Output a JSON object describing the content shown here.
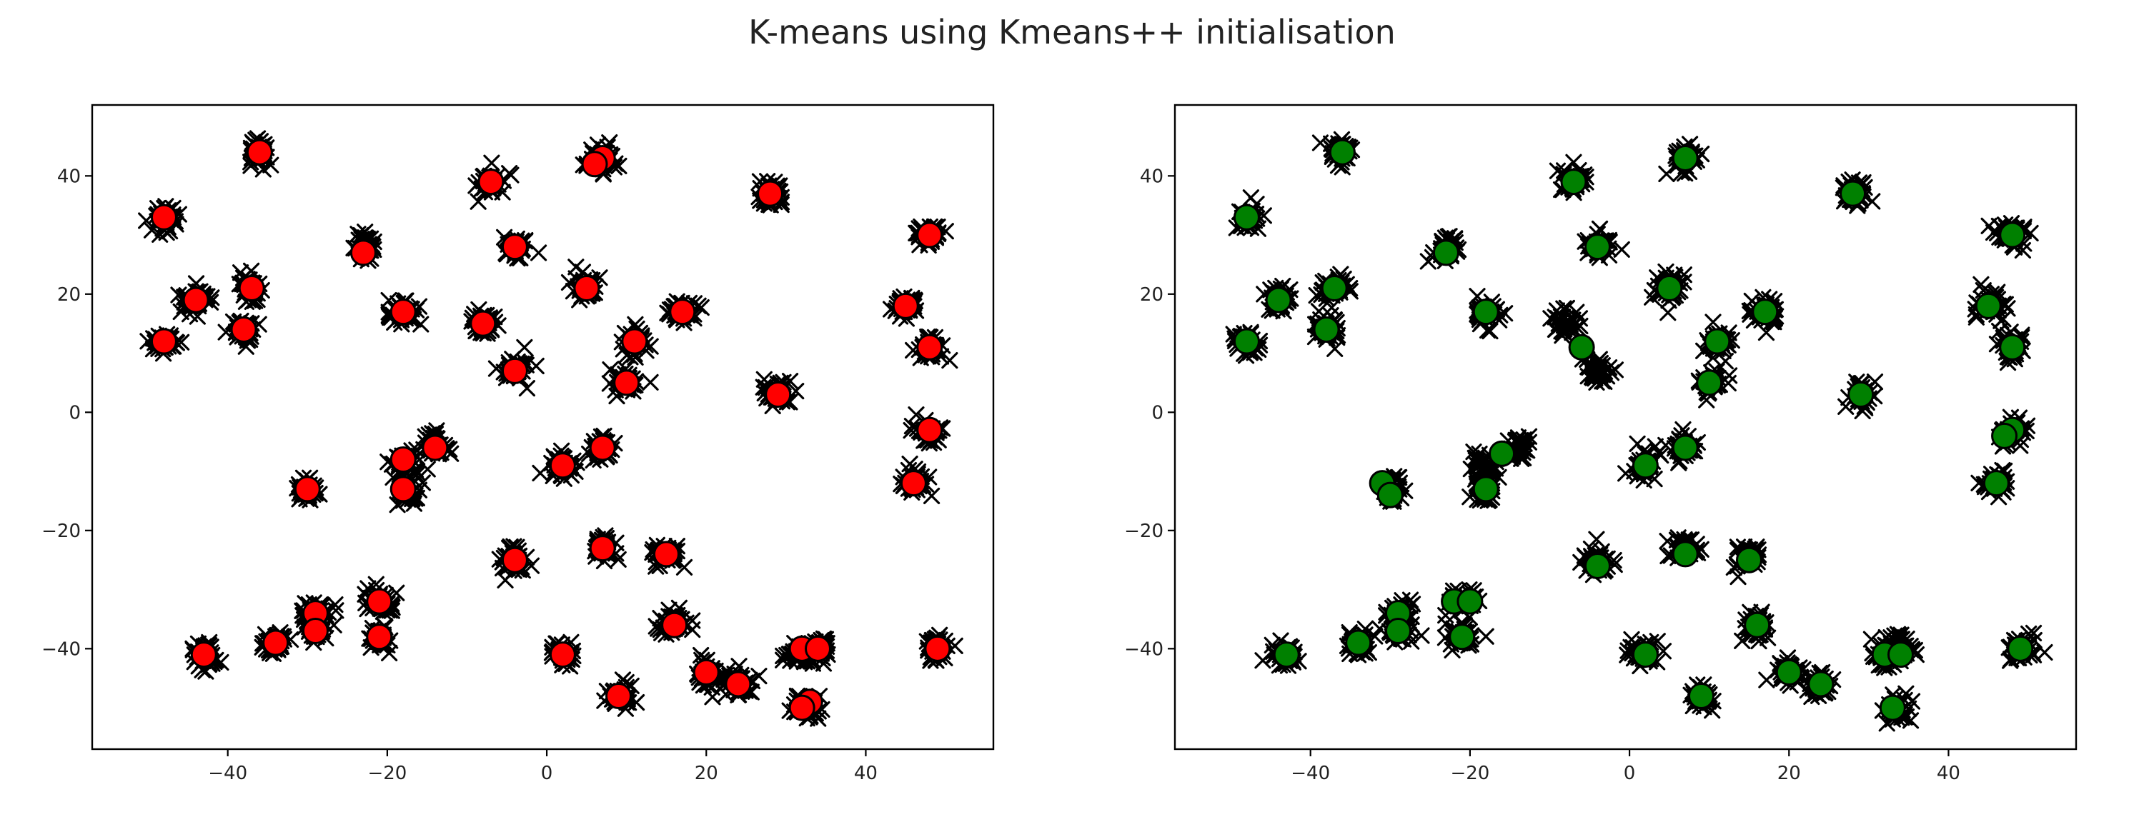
{
  "figure": {
    "title": "K-means using Kmeans++ initialisation",
    "centroid_colors": [
      "#ff0000",
      "#008000"
    ],
    "point_marker": "x",
    "point_color": "#000000"
  },
  "chart_data": [
    {
      "type": "scatter",
      "title": "",
      "xlabel": "",
      "ylabel": "",
      "xlim": [
        -57,
        56
      ],
      "ylim": [
        -57,
        52
      ],
      "xticks": [
        -40,
        -20,
        0,
        20,
        40
      ],
      "yticks": [
        -40,
        -20,
        0,
        20,
        40
      ],
      "grid": false,
      "clusters": [
        [
          -36,
          44
        ],
        [
          -48,
          33
        ],
        [
          -7,
          39
        ],
        [
          7,
          43
        ],
        [
          28,
          37
        ],
        [
          -23,
          28
        ],
        [
          -4,
          28
        ],
        [
          48,
          30
        ],
        [
          -44,
          19
        ],
        [
          -37,
          21
        ],
        [
          -18,
          17
        ],
        [
          5,
          21
        ],
        [
          -8,
          15
        ],
        [
          17,
          17
        ],
        [
          45,
          18
        ],
        [
          -48,
          12
        ],
        [
          -38,
          14
        ],
        [
          11,
          12
        ],
        [
          48,
          11
        ],
        [
          -4,
          7
        ],
        [
          10,
          5
        ],
        [
          29,
          3
        ],
        [
          48,
          -3
        ],
        [
          -14,
          -6
        ],
        [
          -18,
          -9
        ],
        [
          2,
          -9
        ],
        [
          7,
          -6
        ],
        [
          -30,
          -13
        ],
        [
          -18,
          -13
        ],
        [
          46,
          -12
        ],
        [
          -4,
          -25
        ],
        [
          7,
          -23
        ],
        [
          15,
          -24
        ],
        [
          -21,
          -32
        ],
        [
          -29,
          -34
        ],
        [
          16,
          -36
        ],
        [
          -43,
          -41
        ],
        [
          -34,
          -39
        ],
        [
          -29,
          -37
        ],
        [
          -21,
          -38
        ],
        [
          2,
          -41
        ],
        [
          32,
          -41
        ],
        [
          34,
          -40
        ],
        [
          49,
          -40
        ],
        [
          20,
          -44
        ],
        [
          24,
          -46
        ],
        [
          9,
          -48
        ],
        [
          33,
          -50
        ]
      ],
      "centroids": [
        [
          -36,
          44
        ],
        [
          -48,
          33
        ],
        [
          -7,
          39
        ],
        [
          7,
          43
        ],
        [
          6,
          42
        ],
        [
          28,
          37
        ],
        [
          -23,
          27
        ],
        [
          -4,
          28
        ],
        [
          48,
          30
        ],
        [
          -44,
          19
        ],
        [
          -37,
          21
        ],
        [
          -18,
          17
        ],
        [
          5,
          21
        ],
        [
          -8,
          15
        ],
        [
          17,
          17
        ],
        [
          45,
          18
        ],
        [
          -48,
          12
        ],
        [
          -38,
          14
        ],
        [
          11,
          12
        ],
        [
          48,
          11
        ],
        [
          -4,
          7
        ],
        [
          10,
          5
        ],
        [
          29,
          3
        ],
        [
          48,
          -3
        ],
        [
          -14,
          -6
        ],
        [
          -18,
          -8
        ],
        [
          2,
          -9
        ],
        [
          7,
          -6
        ],
        [
          -30,
          -13
        ],
        [
          -18,
          -13
        ],
        [
          46,
          -12
        ],
        [
          -4,
          -25
        ],
        [
          7,
          -23
        ],
        [
          15,
          -24
        ],
        [
          -21,
          -32
        ],
        [
          -29,
          -34
        ],
        [
          16,
          -36
        ],
        [
          -43,
          -41
        ],
        [
          -34,
          -39
        ],
        [
          -29,
          -37
        ],
        [
          -21,
          -38
        ],
        [
          2,
          -41
        ],
        [
          32,
          -40
        ],
        [
          34,
          -40
        ],
        [
          49,
          -40
        ],
        [
          20,
          -44
        ],
        [
          24,
          -46
        ],
        [
          9,
          -48
        ],
        [
          33,
          -49
        ],
        [
          32,
          -50
        ]
      ]
    },
    {
      "type": "scatter",
      "title": "",
      "xlabel": "",
      "ylabel": "",
      "xlim": [
        -57,
        56
      ],
      "ylim": [
        -57,
        52
      ],
      "xticks": [
        -40,
        -20,
        0,
        20,
        40
      ],
      "yticks": [
        -40,
        -20,
        0,
        20,
        40
      ],
      "grid": false,
      "clusters": [
        [
          -36,
          44
        ],
        [
          -48,
          33
        ],
        [
          -7,
          39
        ],
        [
          7,
          43
        ],
        [
          28,
          37
        ],
        [
          -23,
          28
        ],
        [
          -4,
          28
        ],
        [
          48,
          30
        ],
        [
          -44,
          19
        ],
        [
          -37,
          21
        ],
        [
          -18,
          17
        ],
        [
          5,
          21
        ],
        [
          -8,
          15
        ],
        [
          17,
          17
        ],
        [
          45,
          18
        ],
        [
          -48,
          12
        ],
        [
          -38,
          14
        ],
        [
          11,
          12
        ],
        [
          48,
          11
        ],
        [
          -4,
          7
        ],
        [
          10,
          5
        ],
        [
          29,
          3
        ],
        [
          48,
          -3
        ],
        [
          -14,
          -6
        ],
        [
          -18,
          -9
        ],
        [
          2,
          -9
        ],
        [
          7,
          -6
        ],
        [
          -30,
          -13
        ],
        [
          -18,
          -13
        ],
        [
          46,
          -12
        ],
        [
          -4,
          -25
        ],
        [
          7,
          -23
        ],
        [
          15,
          -24
        ],
        [
          -21,
          -32
        ],
        [
          -29,
          -34
        ],
        [
          16,
          -36
        ],
        [
          -43,
          -41
        ],
        [
          -34,
          -39
        ],
        [
          -29,
          -37
        ],
        [
          -21,
          -38
        ],
        [
          2,
          -41
        ],
        [
          32,
          -41
        ],
        [
          34,
          -40
        ],
        [
          49,
          -40
        ],
        [
          20,
          -44
        ],
        [
          24,
          -46
        ],
        [
          9,
          -48
        ],
        [
          33,
          -50
        ]
      ],
      "centroids": [
        [
          -36,
          44
        ],
        [
          -48,
          33
        ],
        [
          -7,
          39
        ],
        [
          7,
          43
        ],
        [
          28,
          37
        ],
        [
          -23,
          27
        ],
        [
          -4,
          28
        ],
        [
          48,
          30
        ],
        [
          -44,
          19
        ],
        [
          -37,
          21
        ],
        [
          -18,
          17
        ],
        [
          5,
          21
        ],
        [
          -6,
          11
        ],
        [
          17,
          17
        ],
        [
          45,
          18
        ],
        [
          -48,
          12
        ],
        [
          -38,
          14
        ],
        [
          11,
          12
        ],
        [
          48,
          11
        ],
        [
          10,
          5
        ],
        [
          29,
          3
        ],
        [
          48,
          -3
        ],
        [
          47,
          -4
        ],
        [
          -16,
          -7
        ],
        [
          2,
          -9
        ],
        [
          7,
          -6
        ],
        [
          -31,
          -12
        ],
        [
          -30,
          -14
        ],
        [
          -18,
          -13
        ],
        [
          46,
          -12
        ],
        [
          -4,
          -26
        ],
        [
          7,
          -24
        ],
        [
          15,
          -25
        ],
        [
          -22,
          -32
        ],
        [
          -20,
          -32
        ],
        [
          -29,
          -34
        ],
        [
          16,
          -36
        ],
        [
          -43,
          -41
        ],
        [
          -34,
          -39
        ],
        [
          -29,
          -37
        ],
        [
          -21,
          -38
        ],
        [
          2,
          -41
        ],
        [
          32,
          -41
        ],
        [
          34,
          -41
        ],
        [
          49,
          -40
        ],
        [
          20,
          -44
        ],
        [
          24,
          -46
        ],
        [
          9,
          -48
        ],
        [
          33,
          -50
        ]
      ]
    }
  ]
}
